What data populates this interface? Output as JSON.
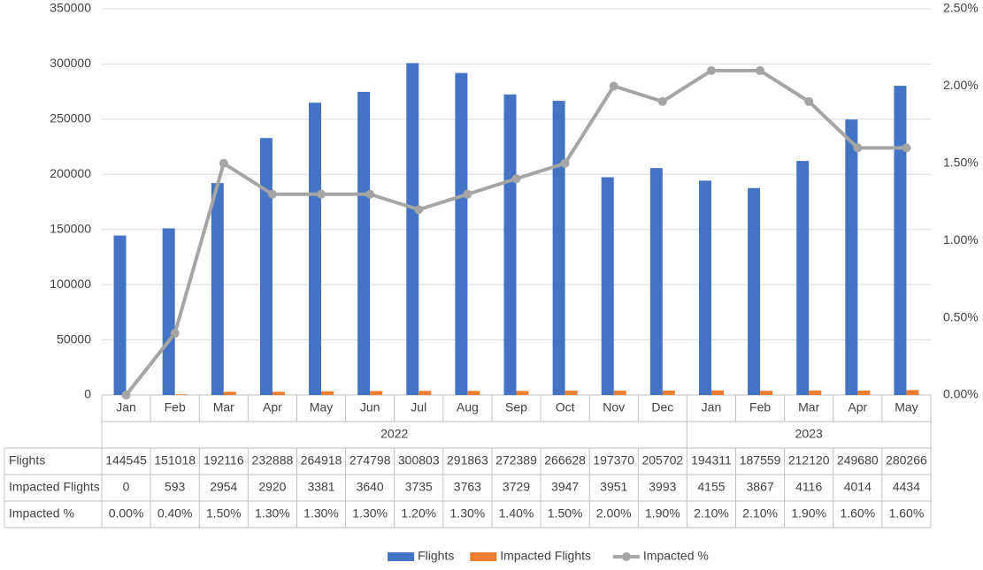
{
  "chart_data": {
    "type": "bar",
    "groups": [
      {
        "label": "2022",
        "categories": [
          "Jan",
          "Feb",
          "Mar",
          "Apr",
          "May",
          "Jun",
          "Jul",
          "Aug",
          "Sep",
          "Oct",
          "Nov",
          "Dec"
        ]
      },
      {
        "label": "2023",
        "categories": [
          "Jan",
          "Feb",
          "Mar",
          "Apr",
          "May"
        ]
      }
    ],
    "series": [
      {
        "name": "Flights",
        "type": "bar",
        "color": "#4472c4",
        "values": [
          144545,
          151018,
          192116,
          232888,
          264918,
          274798,
          300803,
          291863,
          272389,
          266628,
          197370,
          205702,
          194311,
          187559,
          212120,
          249680,
          280266
        ]
      },
      {
        "name": "Impacted Flights",
        "type": "bar",
        "color": "#ed7d31",
        "values": [
          0,
          593,
          2954,
          2920,
          3381,
          3640,
          3735,
          3763,
          3729,
          3947,
          3951,
          3993,
          4155,
          3867,
          4116,
          4014,
          4434
        ]
      },
      {
        "name": "Impacted %",
        "type": "line",
        "axis": "y2",
        "color": "#a5a5a5",
        "values": [
          0,
          0.4,
          1.5,
          1.3,
          1.3,
          1.3,
          1.2,
          1.3,
          1.4,
          1.5,
          2.0,
          1.9,
          2.1,
          2.1,
          1.9,
          1.6,
          1.6
        ],
        "value_labels": [
          "0.00%",
          "0.40%",
          "1.50%",
          "1.30%",
          "1.30%",
          "1.30%",
          "1.20%",
          "1.30%",
          "1.40%",
          "1.50%",
          "2.00%",
          "1.90%",
          "2.10%",
          "2.10%",
          "1.90%",
          "1.60%",
          "1.60%"
        ]
      }
    ],
    "ylim": [
      0,
      350000
    ],
    "yticks": [
      0,
      50000,
      100000,
      150000,
      200000,
      250000,
      300000,
      350000
    ],
    "y2lim": [
      0,
      2.5
    ],
    "y2ticks": [
      {
        "value": 0,
        "label": "0.00%"
      },
      {
        "value": 0.5,
        "label": "0.50%"
      },
      {
        "value": 1,
        "label": "1.00%"
      },
      {
        "value": 1.5,
        "label": "1.50%"
      },
      {
        "value": 2,
        "label": "2.00%"
      },
      {
        "value": 2.5,
        "label": "2.50%"
      }
    ],
    "grid": true,
    "legend": "bottom"
  }
}
